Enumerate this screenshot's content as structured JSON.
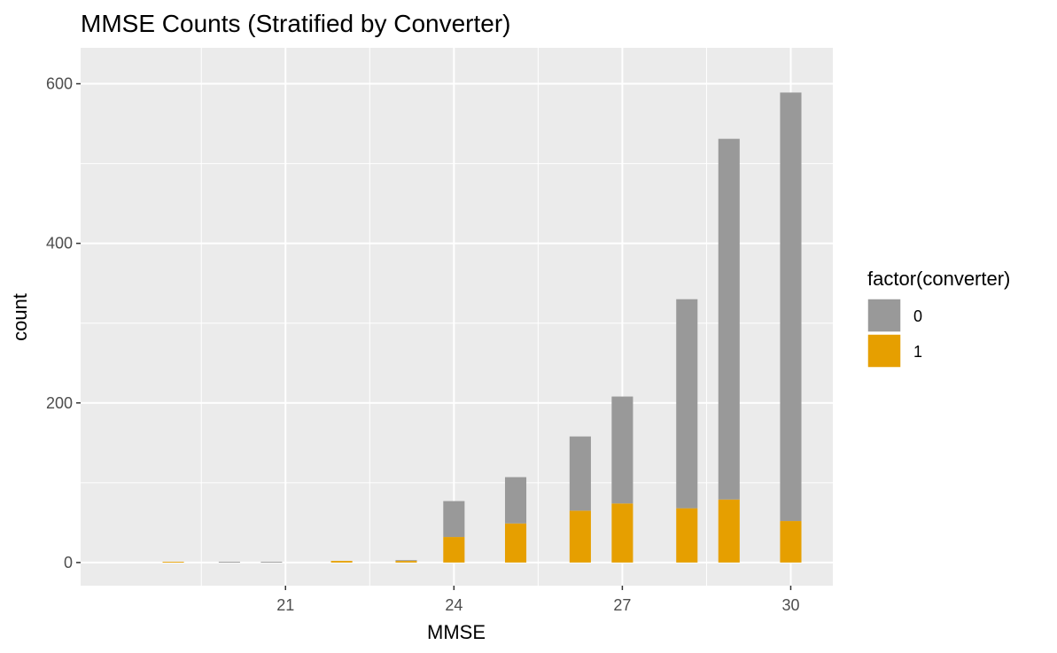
{
  "chart_data": {
    "type": "bar",
    "stacked": true,
    "title": "MMSE Counts (Stratified by Converter)",
    "xlabel": "MMSE",
    "ylabel": "count",
    "x_ticks": [
      21,
      24,
      27,
      30
    ],
    "y_ticks": [
      0,
      200,
      400,
      600
    ],
    "xlim": [
      17.35,
      30.75
    ],
    "ylim": [
      -29,
      645
    ],
    "bar_width": 0.38,
    "x": [
      19,
      20,
      20.75,
      22,
      23.15,
      24,
      25.1,
      26.25,
      27,
      28.15,
      28.9,
      30
    ],
    "series": [
      {
        "name": "0",
        "color": "#999999",
        "values": [
          0,
          1,
          1,
          0,
          1,
          45,
          58,
          93,
          134,
          262,
          452,
          537
        ]
      },
      {
        "name": "1",
        "color": "#E69F00",
        "values": [
          1,
          0,
          0,
          2,
          2,
          32,
          49,
          65,
          74,
          68,
          79,
          52
        ]
      }
    ],
    "legend": {
      "title": "factor(converter)",
      "position": "right"
    },
    "grid": true,
    "panel_color": "#EBEBEB"
  }
}
